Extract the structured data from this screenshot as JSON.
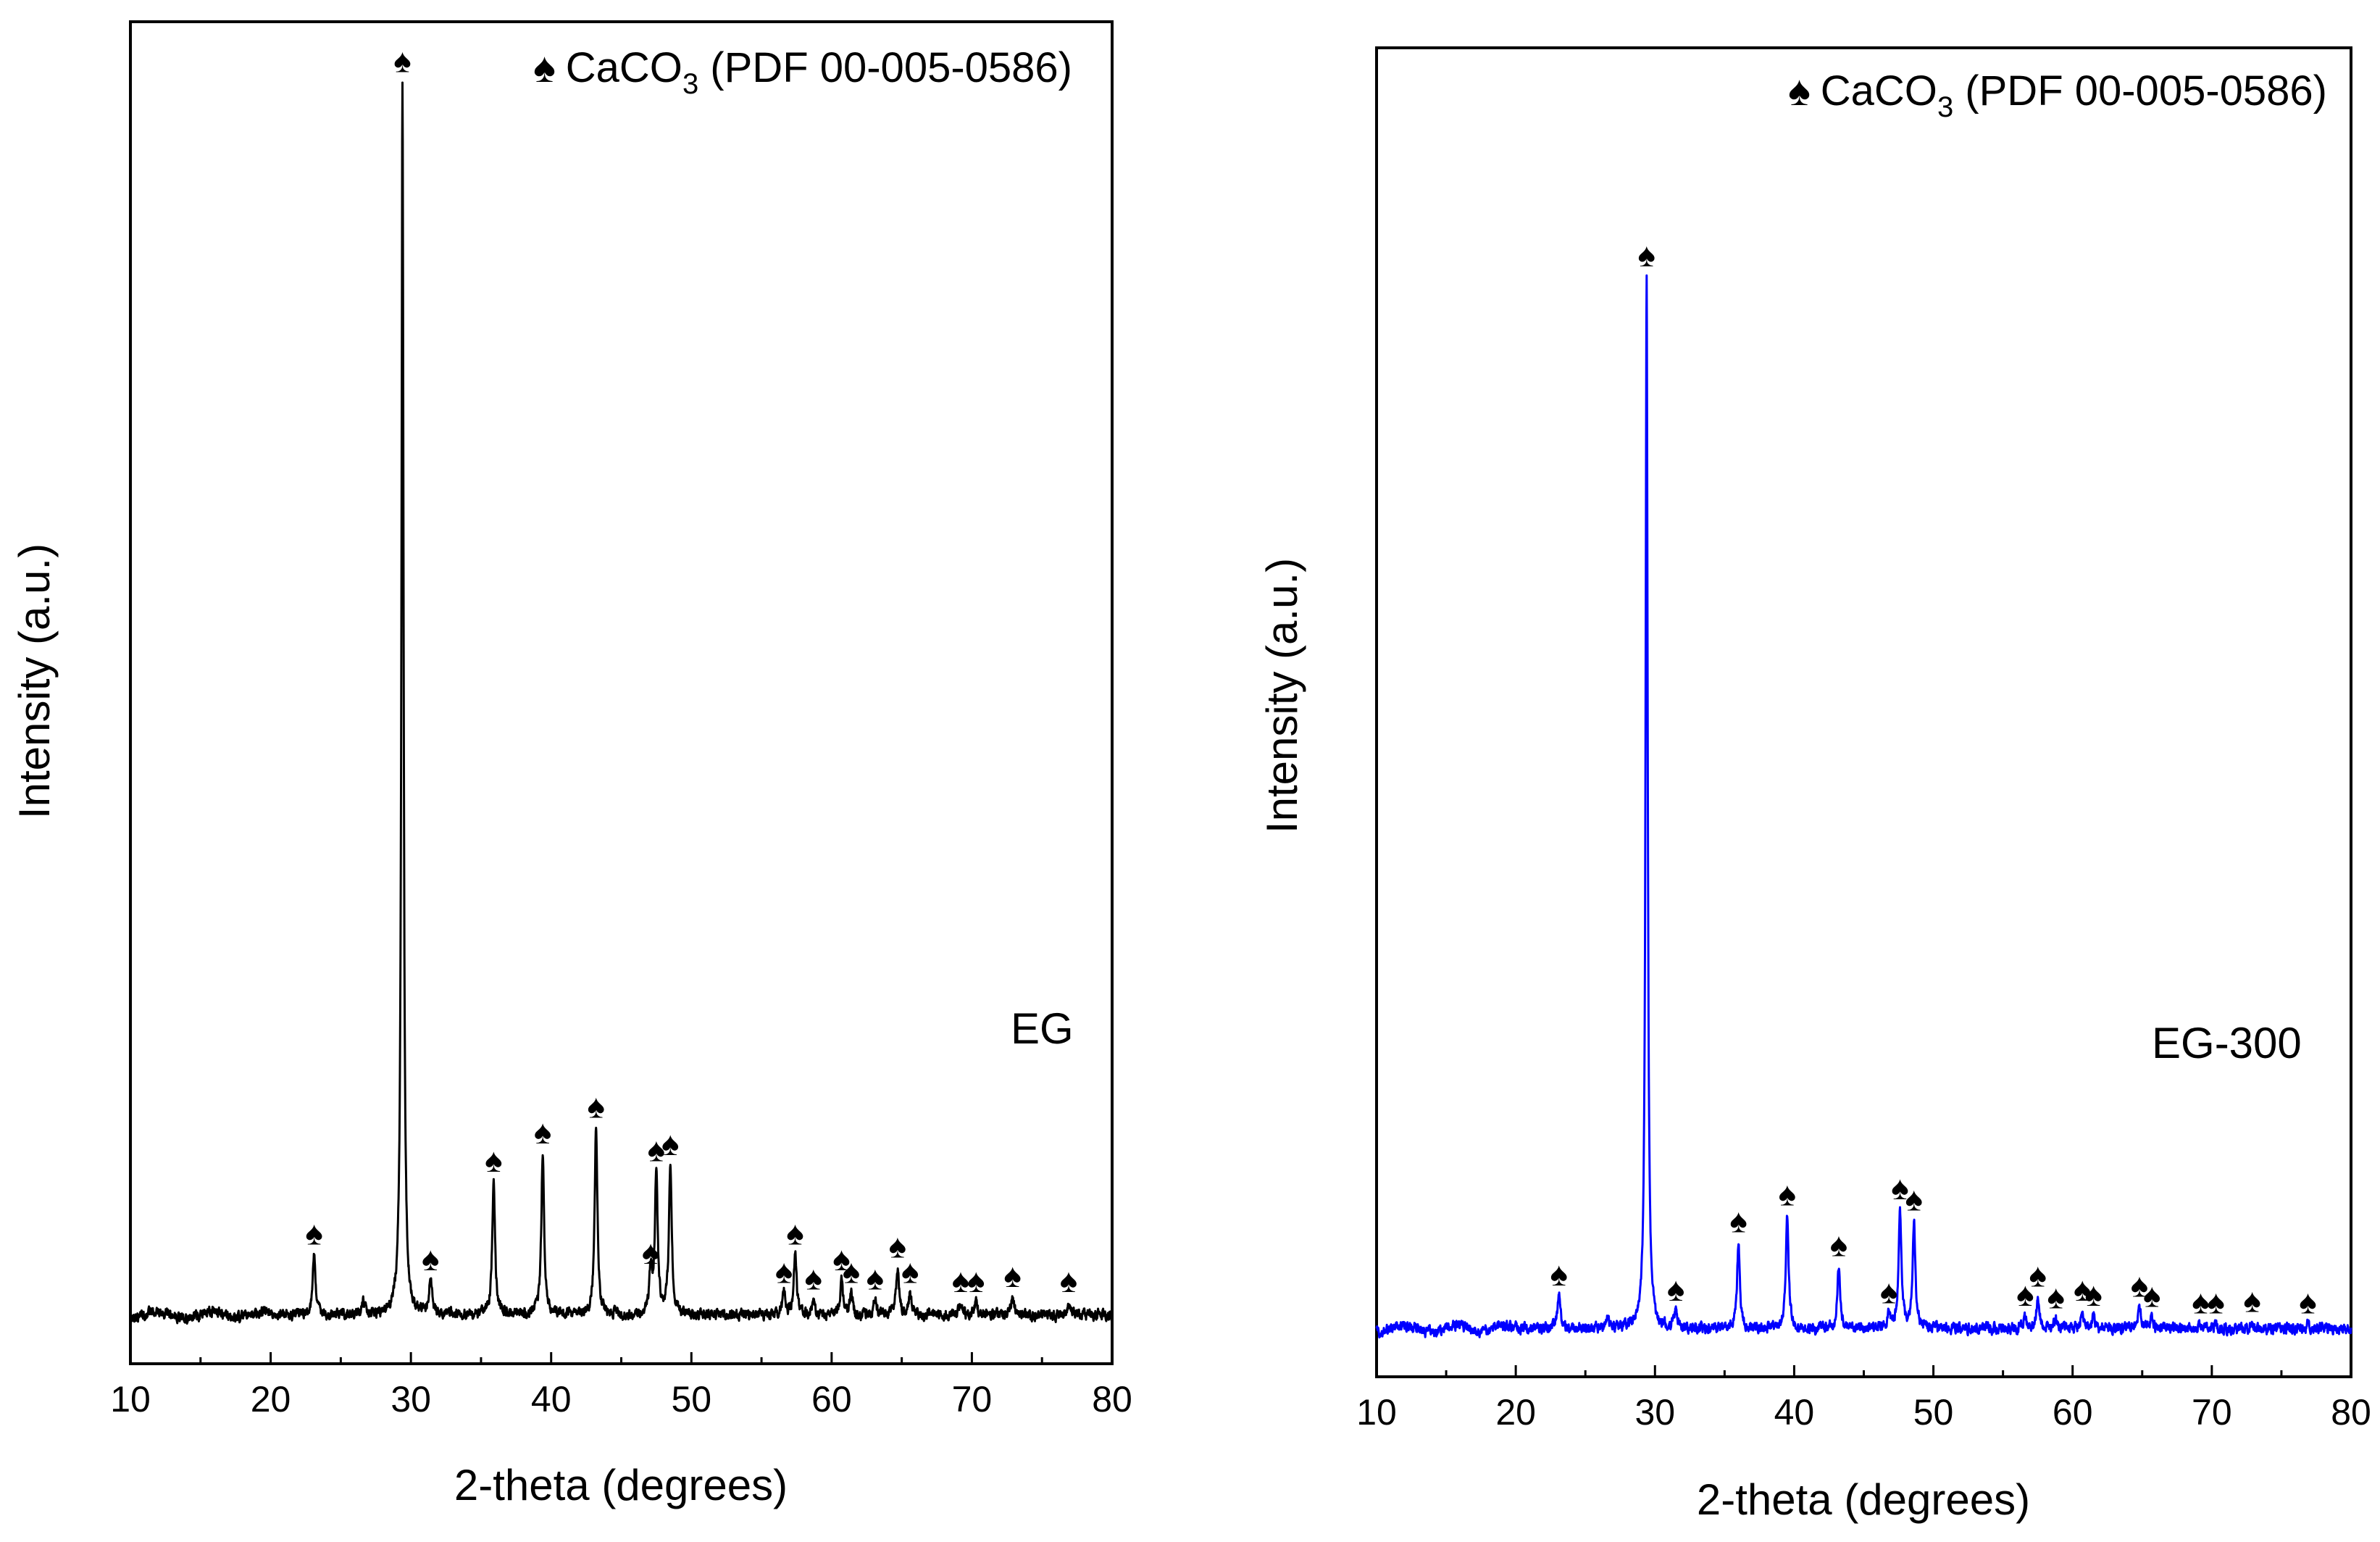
{
  "chart_data": [
    {
      "type": "line",
      "title": "",
      "xlabel": "2-theta (degrees)",
      "ylabel": "Intensity (a.u.)",
      "xlim": [
        10,
        80
      ],
      "ylim": [
        0,
        100
      ],
      "x_ticks": [
        10,
        20,
        30,
        40,
        50,
        60,
        70,
        80
      ],
      "x_tick_labels": [
        "10",
        "20",
        "30",
        "40",
        "50",
        "60",
        "70",
        "80"
      ],
      "y_ticks_shown": false,
      "legend": {
        "symbol": "♠",
        "text_before_sub": "CaCO",
        "subscript": "3",
        "text_after_sub": " (PDF 00-005-0586)",
        "placement": "top-right"
      },
      "sample_label": "EG",
      "series": [
        {
          "name": "EG",
          "color": "#000000",
          "baseline": 3.8,
          "peaks": [
            {
              "x": 23.1,
              "y": 8.5,
              "marked": true
            },
            {
              "x": 26.6,
              "y": 5.0,
              "marked": false
            },
            {
              "x": 29.4,
              "y": 100,
              "marked": true
            },
            {
              "x": 31.4,
              "y": 6.5,
              "marked": true
            },
            {
              "x": 35.9,
              "y": 14.2,
              "marked": true
            },
            {
              "x": 39.4,
              "y": 16.4,
              "marked": true
            },
            {
              "x": 43.2,
              "y": 18.4,
              "marked": true
            },
            {
              "x": 47.1,
              "y": 7.0,
              "marked": true
            },
            {
              "x": 47.5,
              "y": 15.0,
              "marked": true
            },
            {
              "x": 48.5,
              "y": 15.5,
              "marked": true
            },
            {
              "x": 56.6,
              "y": 5.5,
              "marked": true
            },
            {
              "x": 57.4,
              "y": 8.5,
              "marked": true
            },
            {
              "x": 58.7,
              "y": 5.0,
              "marked": true
            },
            {
              "x": 60.7,
              "y": 6.5,
              "marked": true
            },
            {
              "x": 61.4,
              "y": 5.5,
              "marked": true
            },
            {
              "x": 63.1,
              "y": 5.0,
              "marked": true
            },
            {
              "x": 64.7,
              "y": 7.5,
              "marked": true
            },
            {
              "x": 65.6,
              "y": 5.5,
              "marked": true
            },
            {
              "x": 69.2,
              "y": 4.8,
              "marked": true
            },
            {
              "x": 70.3,
              "y": 4.8,
              "marked": true
            },
            {
              "x": 72.9,
              "y": 5.2,
              "marked": true
            },
            {
              "x": 76.9,
              "y": 4.8,
              "marked": true
            }
          ]
        }
      ]
    },
    {
      "type": "line",
      "title": "",
      "xlabel": "2-theta (degrees)",
      "ylabel": "Intensity (a.u.)",
      "xlim": [
        10,
        80
      ],
      "ylim": [
        0,
        100
      ],
      "x_ticks": [
        10,
        20,
        30,
        40,
        50,
        60,
        70,
        80
      ],
      "x_tick_labels": [
        "10",
        "20",
        "30",
        "40",
        "50",
        "60",
        "70",
        "80"
      ],
      "y_ticks_shown": false,
      "legend": {
        "symbol": "♠",
        "text_before_sub": "CaCO",
        "subscript": "3",
        "text_after_sub": " (PDF 00-005-0586)",
        "placement": "top-right"
      },
      "sample_label": "EG-300",
      "series": [
        {
          "name": "EG-300",
          "color": "#0000ff",
          "baseline": 3.8,
          "peaks": [
            {
              "x": 23.1,
              "y": 6.4,
              "marked": true
            },
            {
              "x": 26.6,
              "y": 4.6,
              "marked": false
            },
            {
              "x": 29.4,
              "y": 86.7,
              "marked": true
            },
            {
              "x": 31.5,
              "y": 5.2,
              "marked": true
            },
            {
              "x": 36.0,
              "y": 10.6,
              "marked": true
            },
            {
              "x": 39.5,
              "y": 12.7,
              "marked": true
            },
            {
              "x": 43.2,
              "y": 8.7,
              "marked": true
            },
            {
              "x": 46.8,
              "y": 5.0,
              "marked": true
            },
            {
              "x": 47.6,
              "y": 13.2,
              "marked": true
            },
            {
              "x": 48.6,
              "y": 12.3,
              "marked": true
            },
            {
              "x": 56.6,
              "y": 4.8,
              "marked": true
            },
            {
              "x": 57.5,
              "y": 6.3,
              "marked": true
            },
            {
              "x": 58.8,
              "y": 4.6,
              "marked": true
            },
            {
              "x": 60.7,
              "y": 5.2,
              "marked": true
            },
            {
              "x": 61.5,
              "y": 4.8,
              "marked": true
            },
            {
              "x": 64.8,
              "y": 5.5,
              "marked": true
            },
            {
              "x": 65.7,
              "y": 4.7,
              "marked": true
            },
            {
              "x": 69.2,
              "y": 4.2,
              "marked": true
            },
            {
              "x": 70.3,
              "y": 4.2,
              "marked": true
            },
            {
              "x": 72.9,
              "y": 4.3,
              "marked": true
            },
            {
              "x": 76.9,
              "y": 4.2,
              "marked": true
            }
          ]
        }
      ]
    }
  ]
}
